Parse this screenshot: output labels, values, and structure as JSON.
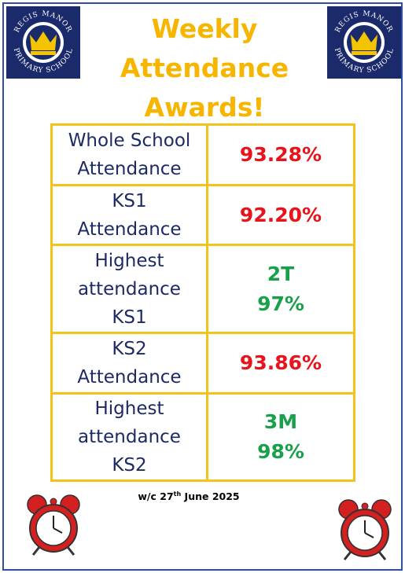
{
  "logos": [
    {
      "top": "REGIS MANOR",
      "bottom": "PRIMARY SCHOOL"
    },
    {
      "top": "REGIS MANOR",
      "bottom": "PRIMARY SCHOOL"
    }
  ],
  "title": [
    "Weekly",
    "Attendance",
    "Awards!"
  ],
  "table": {
    "rows": [
      {
        "label": [
          "Whole School",
          "Attendance"
        ],
        "value": [
          "93.28%"
        ],
        "color": "#e8131b"
      },
      {
        "label": [
          "KS1",
          "Attendance"
        ],
        "value": [
          "92.20%"
        ],
        "color": "#e8131b"
      },
      {
        "label": [
          "Highest",
          "attendance",
          "KS1"
        ],
        "value": [
          "2T",
          "97%"
        ],
        "color": "#18a04a"
      },
      {
        "label": [
          "KS2",
          "Attendance"
        ],
        "value": [
          "93.86%"
        ],
        "color": "#e8131b"
      },
      {
        "label": [
          "Highest",
          "attendance",
          "KS2"
        ],
        "value": [
          "3M",
          "98%"
        ],
        "color": "#18a04a"
      }
    ]
  },
  "footer": {
    "prefix": "w/c 27",
    "sup": "th",
    "suffix": " June 2025"
  }
}
